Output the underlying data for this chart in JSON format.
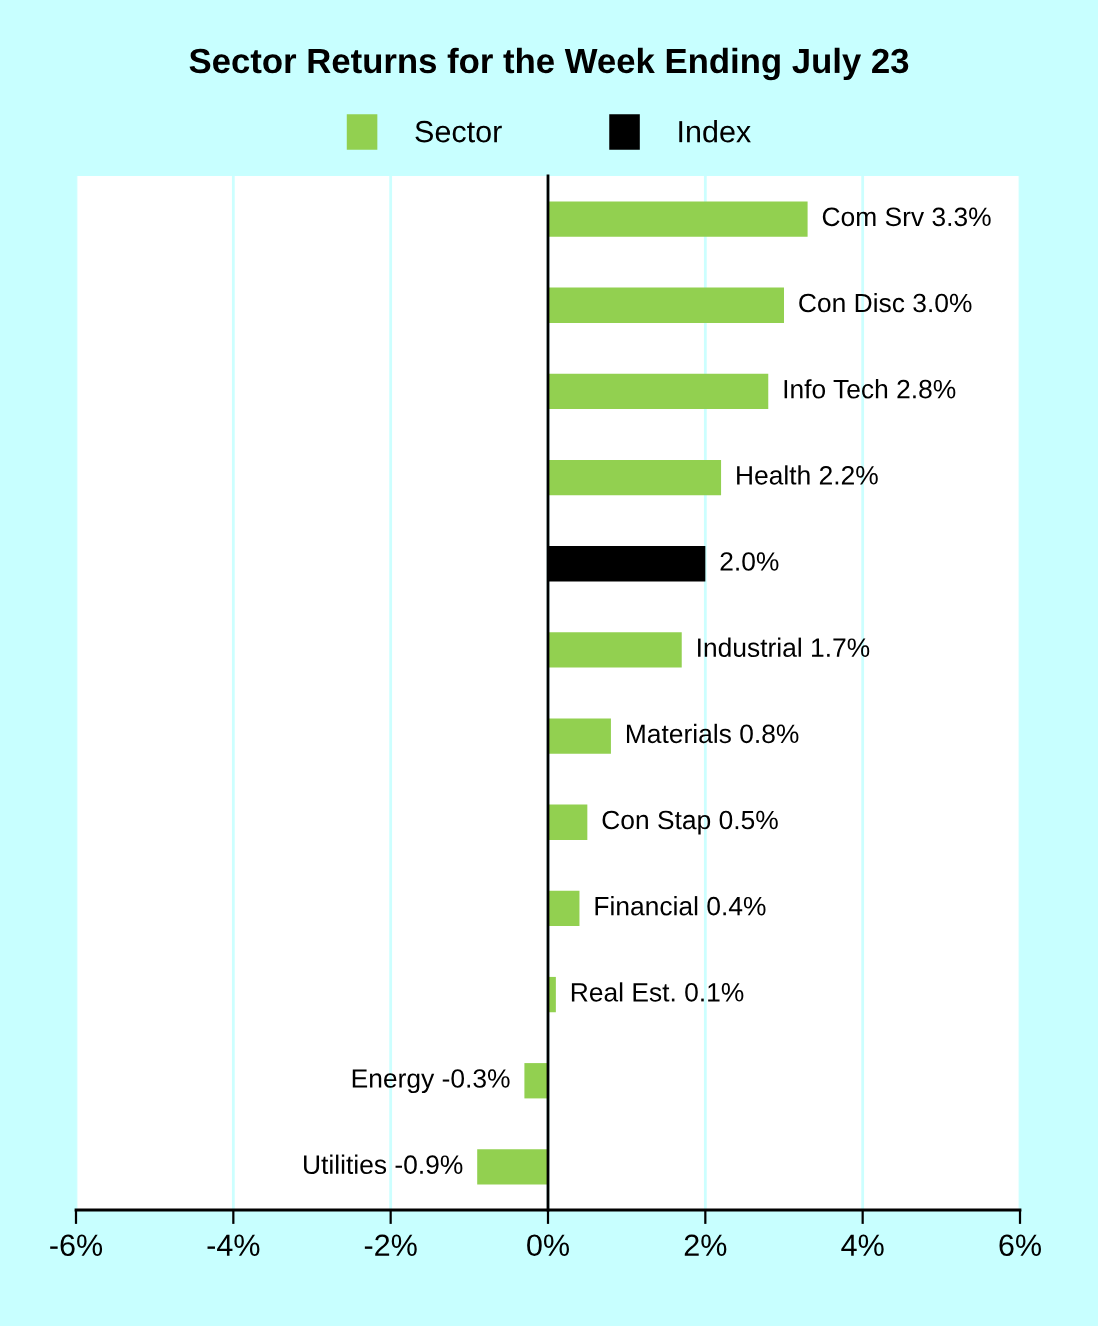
{
  "chart_data": {
    "type": "bar",
    "orientation": "horizontal",
    "title": "Sector Returns for the Week Ending July 23",
    "categories": [
      "Com Srv",
      "Con Disc",
      "Info Tech",
      "Health",
      null,
      "Industrial",
      "Materials",
      "Con Stap",
      "Financial",
      "Real Est.",
      "Energy",
      "Utilities"
    ],
    "series": [
      {
        "name": "Sector",
        "color": "#92d050",
        "values": [
          3.3,
          3.0,
          2.8,
          2.2,
          null,
          1.7,
          0.8,
          0.5,
          0.4,
          0.1,
          -0.3,
          -0.9
        ],
        "value_labels": [
          "3.3%",
          "3.0%",
          "2.8%",
          "2.2%",
          null,
          "1.7%",
          "0.8%",
          "0.5%",
          "0.4%",
          "0.1%",
          "-0.3%",
          "-0.9%"
        ]
      },
      {
        "name": "Index",
        "color": "#000000",
        "values": [
          null,
          null,
          null,
          null,
          2.0,
          null,
          null,
          null,
          null,
          null,
          null,
          null
        ],
        "value_labels": [
          null,
          null,
          null,
          null,
          "2.0%",
          null,
          null,
          null,
          null,
          null,
          null,
          null
        ]
      }
    ],
    "xlim": [
      -6,
      6
    ],
    "xticks": [
      {
        "value": -6,
        "label": "-6%"
      },
      {
        "value": -4,
        "label": "-4%"
      },
      {
        "value": -2,
        "label": "-2%"
      },
      {
        "value": 0,
        "label": "0%"
      },
      {
        "value": 2,
        "label": "2%"
      },
      {
        "value": 4,
        "label": "4%"
      },
      {
        "value": 6,
        "label": "6%"
      }
    ],
    "grid": "x",
    "legend": "top"
  }
}
